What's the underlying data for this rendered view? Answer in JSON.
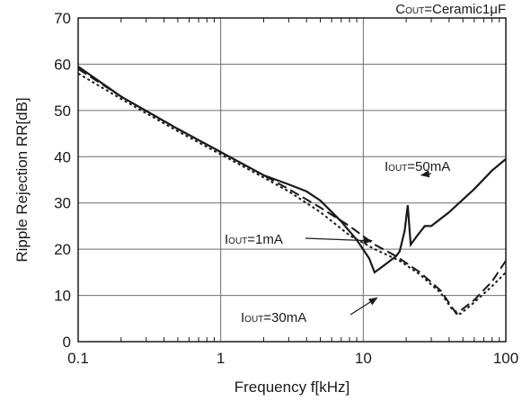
{
  "chart_data": {
    "type": "line",
    "title": "",
    "condition": {
      "main": "C",
      "sub": "OUT",
      "rest": "=Ceramic1μF"
    },
    "xlabel": "Frequency f[kHz]",
    "ylabel": "Ripple Rejection RR[dB]",
    "x_scale": "log",
    "xlim": [
      0.1,
      100
    ],
    "ylim": [
      0,
      70
    ],
    "x_ticks": [
      0.1,
      1,
      10,
      100
    ],
    "x_tick_labels": [
      "0.1",
      "1",
      "10",
      "100"
    ],
    "y_ticks": [
      0,
      10,
      20,
      30,
      40,
      50,
      60,
      70
    ],
    "y_tick_labels": [
      "0",
      "10",
      "20",
      "30",
      "40",
      "50",
      "60",
      "70"
    ],
    "grid": true,
    "series": [
      {
        "name": "IOUT=1mA",
        "style": "dashed",
        "points": [
          [
            0.1,
            59
          ],
          [
            0.2,
            53
          ],
          [
            0.5,
            46
          ],
          [
            1,
            41
          ],
          [
            2,
            36
          ],
          [
            3,
            33
          ],
          [
            5,
            29
          ],
          [
            8,
            25
          ],
          [
            12,
            21
          ],
          [
            17,
            18.5
          ],
          [
            25,
            15
          ],
          [
            35,
            11
          ],
          [
            45,
            6
          ],
          [
            60,
            9
          ],
          [
            80,
            13
          ],
          [
            100,
            17.5
          ]
        ]
      },
      {
        "name": "IOUT=30mA",
        "style": "dotted",
        "points": [
          [
            0.1,
            58
          ],
          [
            0.2,
            52.5
          ],
          [
            0.5,
            45.5
          ],
          [
            1,
            40.5
          ],
          [
            2,
            35.5
          ],
          [
            3,
            32.5
          ],
          [
            5,
            28
          ],
          [
            8,
            23
          ],
          [
            12,
            20
          ],
          [
            18,
            17.5
          ],
          [
            25,
            14.5
          ],
          [
            35,
            10.5
          ],
          [
            42,
            7
          ],
          [
            48,
            6
          ],
          [
            60,
            8.5
          ],
          [
            80,
            12
          ],
          [
            100,
            15
          ]
        ]
      },
      {
        "name": "IOUT=50mA",
        "style": "solid",
        "points": [
          [
            0.1,
            59.5
          ],
          [
            0.2,
            53
          ],
          [
            0.5,
            46
          ],
          [
            1,
            41
          ],
          [
            2,
            36
          ],
          [
            3,
            34
          ],
          [
            4,
            32.5
          ],
          [
            5,
            30.5
          ],
          [
            7,
            26
          ],
          [
            9,
            22
          ],
          [
            11,
            18
          ],
          [
            12,
            15
          ],
          [
            14,
            16.5
          ],
          [
            17,
            18.5
          ],
          [
            18,
            19.5
          ],
          [
            19.5,
            24
          ],
          [
            20.5,
            29.5
          ],
          [
            21.5,
            21
          ],
          [
            24,
            23
          ],
          [
            27,
            25
          ],
          [
            30,
            25
          ],
          [
            40,
            28
          ],
          [
            60,
            33
          ],
          [
            80,
            37
          ],
          [
            100,
            39.5
          ]
        ]
      }
    ],
    "annotations": [
      {
        "main": "I",
        "sub": "OUT",
        "rest": "=1mA",
        "at": [
          11.5,
          21.8
        ]
      },
      {
        "main": "I",
        "sub": "OUT",
        "rest": "=50mA",
        "at": [
          25.5,
          36
        ]
      },
      {
        "main": "I",
        "sub": "OUT",
        "rest": "=30mA",
        "at": [
          12.5,
          9.5
        ]
      }
    ],
    "colors": {
      "line": "#1a1a1a",
      "grid": "#6e6e6e",
      "frame": "#1a1a1a",
      "background": "#ffffff"
    }
  }
}
